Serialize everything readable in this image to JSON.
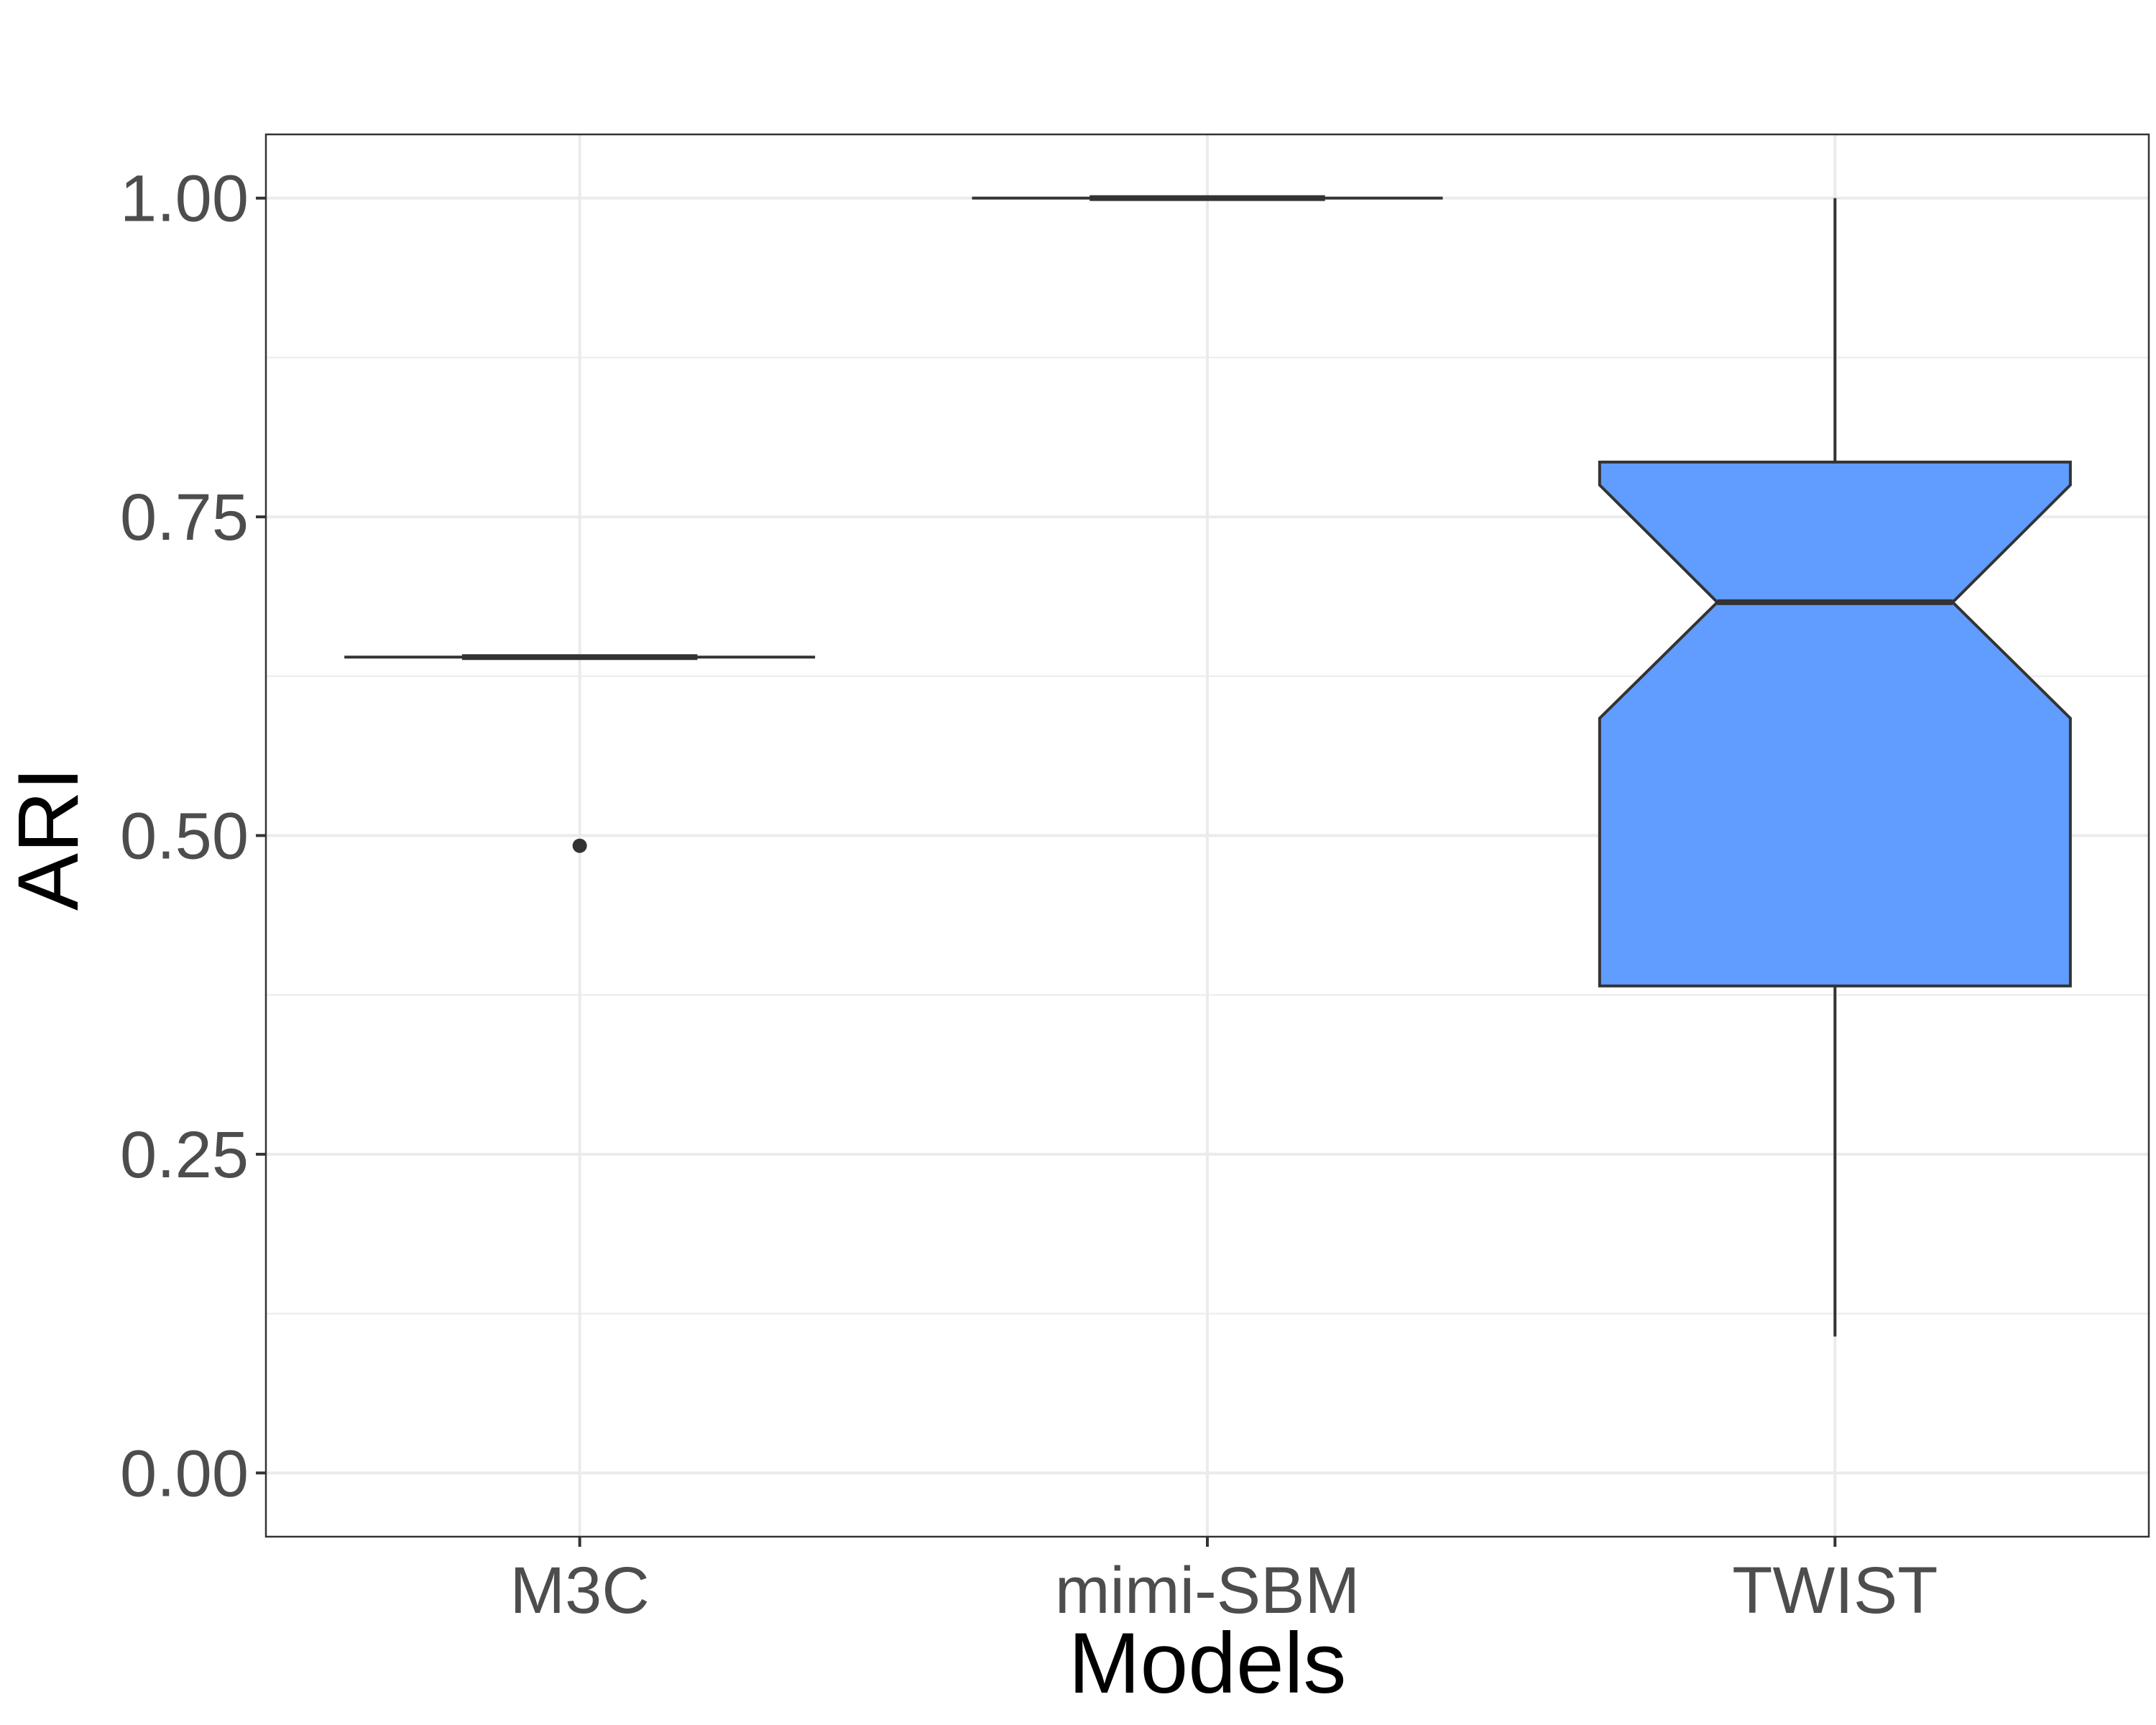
{
  "chart_data": {
    "type": "box",
    "title": "",
    "xlabel": "Models",
    "ylabel": "ARI",
    "categories": [
      "M3C",
      "mimi-SBM",
      "TWIST"
    ],
    "ylim": [
      -0.05,
      1.05
    ],
    "yticks": [
      {
        "value": 0.0,
        "label": "0.00"
      },
      {
        "value": 0.25,
        "label": "0.25"
      },
      {
        "value": 0.5,
        "label": "0.50"
      },
      {
        "value": 0.75,
        "label": "0.75"
      },
      {
        "value": 1.0,
        "label": "1.00"
      }
    ],
    "grid": true,
    "notched": true,
    "boxes": [
      {
        "category": "M3C",
        "min": 0.64,
        "q1": 0.64,
        "median": 0.64,
        "q3": 0.64,
        "max": 0.64,
        "notch_low": 0.64,
        "notch_high": 0.64,
        "outliers": [
          0.492
        ],
        "fill": "#ffffff"
      },
      {
        "category": "mimi-SBM",
        "min": 1.0,
        "q1": 1.0,
        "median": 1.0,
        "q3": 1.0,
        "max": 1.0,
        "notch_low": 1.0,
        "notch_high": 1.0,
        "outliers": [],
        "fill": "#ffffff"
      },
      {
        "category": "TWIST",
        "min": 0.107,
        "q1": 0.382,
        "median": 0.683,
        "q3": 0.793,
        "max": 1.0,
        "notch_low": 0.592,
        "notch_high": 0.775,
        "outliers": [],
        "fill": "#619cff"
      }
    ]
  },
  "colors": {
    "box_outline": "#333333",
    "grid": "#ebebeb",
    "panel_border": "#333333",
    "twist_fill": "#619cff"
  }
}
